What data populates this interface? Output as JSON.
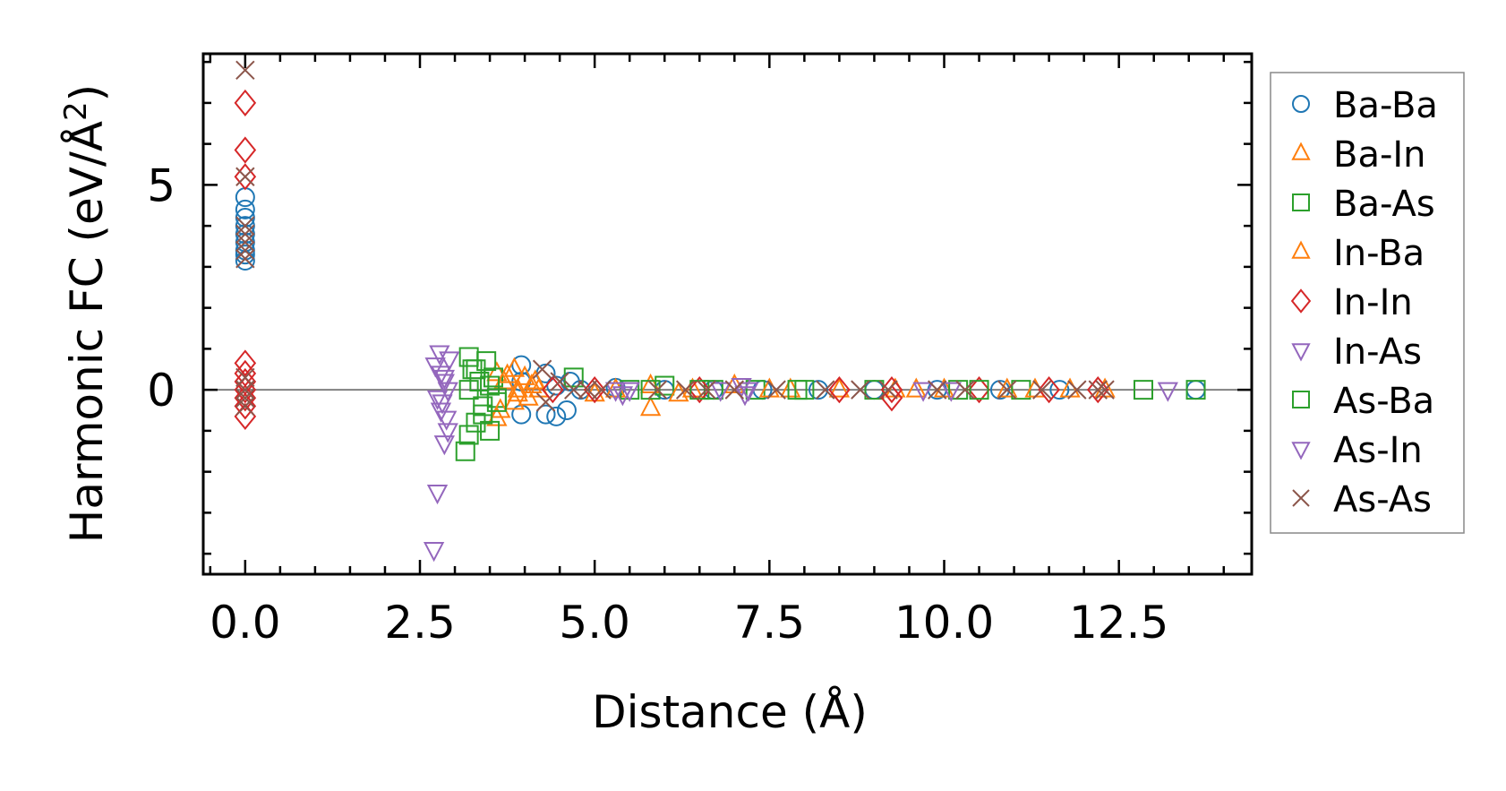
{
  "chart_data": {
    "type": "scatter",
    "title": "",
    "xlabel": "Distance (Å)",
    "ylabel_main": "Harmonic FC (eV/Å",
    "ylabel_sup": "2",
    "ylabel_end": ")",
    "xlim": [
      -0.6,
      14.4
    ],
    "ylim": [
      -4.5,
      8.2
    ],
    "x_ticks": [
      0.0,
      2.5,
      5.0,
      7.5,
      10.0,
      12.5
    ],
    "x_tick_labels": [
      "0.0",
      "2.5",
      "5.0",
      "7.5",
      "10.0",
      "12.5"
    ],
    "y_ticks": [
      0,
      5
    ],
    "y_tick_labels": [
      "0",
      "5"
    ],
    "x_minor_step": 0.5,
    "y_minor_step": 1.0,
    "zero_line": true,
    "legend_position": "outside-right",
    "series": [
      {
        "name": "Ba-Ba",
        "marker": "circle",
        "color": "#1f77b4",
        "points": [
          [
            0,
            4.7
          ],
          [
            0,
            4.4
          ],
          [
            0,
            4.2
          ],
          [
            0,
            4.0
          ],
          [
            0,
            3.8
          ],
          [
            0,
            3.6
          ],
          [
            0,
            3.4
          ],
          [
            0,
            3.3
          ],
          [
            0,
            3.15
          ],
          [
            3.95,
            0.6
          ],
          [
            3.95,
            0.2
          ],
          [
            3.95,
            -0.6
          ],
          [
            4.3,
            0.4
          ],
          [
            4.3,
            -0.6
          ],
          [
            4.45,
            0.1
          ],
          [
            4.45,
            -0.65
          ],
          [
            4.6,
            -0.5
          ],
          [
            4.65,
            0.2
          ],
          [
            4.8,
            0.0
          ],
          [
            5.3,
            0.05
          ],
          [
            6.0,
            0.0
          ],
          [
            6.7,
            0.0
          ],
          [
            7.4,
            0.0
          ],
          [
            8.2,
            0.0
          ],
          [
            9.0,
            0.0
          ],
          [
            9.9,
            0.0
          ],
          [
            10.8,
            0.0
          ],
          [
            11.65,
            0.0
          ],
          [
            13.6,
            0.0
          ]
        ]
      },
      {
        "name": "Ba-In",
        "marker": "triangle-up",
        "color": "#ff7f0e",
        "points": [
          [
            3.6,
            0.4
          ],
          [
            3.6,
            -0.7
          ],
          [
            3.7,
            0.2
          ],
          [
            3.85,
            0.5
          ],
          [
            3.85,
            -0.3
          ],
          [
            3.9,
            0.0
          ],
          [
            4.0,
            0.3
          ],
          [
            4.05,
            -0.2
          ],
          [
            4.1,
            0.1
          ],
          [
            4.2,
            0.0
          ],
          [
            5.3,
            0.0
          ],
          [
            5.8,
            -0.45
          ],
          [
            5.8,
            0.1
          ],
          [
            6.4,
            0.0
          ],
          [
            7.0,
            0.1
          ],
          [
            7.8,
            0.0
          ],
          [
            8.5,
            0.0
          ],
          [
            9.3,
            0.0
          ],
          [
            10.0,
            0.0
          ],
          [
            10.9,
            0.0
          ],
          [
            11.8,
            0.0
          ],
          [
            12.3,
            0.0
          ]
        ]
      },
      {
        "name": "Ba-As",
        "marker": "square",
        "color": "#2ca02c",
        "points": [
          [
            3.15,
            -1.5
          ],
          [
            3.2,
            0.8
          ],
          [
            3.2,
            -1.1
          ],
          [
            3.25,
            0.5
          ],
          [
            3.3,
            -0.8
          ],
          [
            3.35,
            0.2
          ],
          [
            3.4,
            -0.4
          ],
          [
            3.45,
            0.7
          ],
          [
            3.5,
            -1.0
          ],
          [
            3.55,
            0.3
          ],
          [
            3.6,
            -0.2
          ],
          [
            4.7,
            0.3
          ],
          [
            5.5,
            0.0
          ],
          [
            6.0,
            0.1
          ],
          [
            6.7,
            0.0
          ],
          [
            7.3,
            0.0
          ],
          [
            8.0,
            0.0
          ],
          [
            9.0,
            0.0
          ],
          [
            10.2,
            0.0
          ],
          [
            11.1,
            0.0
          ],
          [
            12.85,
            0.0
          ],
          [
            13.6,
            0.0
          ]
        ]
      },
      {
        "name": "In-Ba",
        "marker": "triangle-up",
        "color": "#ff7f0e",
        "points": [
          [
            3.65,
            -0.5
          ],
          [
            3.75,
            0.35
          ],
          [
            3.9,
            -0.1
          ],
          [
            4.15,
            0.2
          ],
          [
            5.0,
            -0.1
          ],
          [
            6.2,
            -0.1
          ],
          [
            7.5,
            0.0
          ],
          [
            9.6,
            0.0
          ],
          [
            11.3,
            0.0
          ]
        ]
      },
      {
        "name": "In-In",
        "marker": "diamond",
        "color": "#d62728",
        "points": [
          [
            0,
            7.0
          ],
          [
            0,
            5.85
          ],
          [
            0,
            5.2
          ],
          [
            0,
            0.65
          ],
          [
            0,
            0.4
          ],
          [
            0,
            0.2
          ],
          [
            0,
            0.0
          ],
          [
            0,
            -0.2
          ],
          [
            0,
            -0.4
          ],
          [
            0,
            -0.65
          ],
          [
            4.4,
            0.0
          ],
          [
            5.0,
            0.0
          ],
          [
            6.5,
            0.0
          ],
          [
            8.5,
            0.0
          ],
          [
            9.25,
            0.0
          ],
          [
            9.25,
            -0.2
          ],
          [
            10.5,
            0.0
          ],
          [
            11.5,
            0.0
          ],
          [
            12.2,
            0.0
          ]
        ]
      },
      {
        "name": "In-As",
        "marker": "triangle-down",
        "color": "#9467bd",
        "points": [
          [
            2.7,
            -3.9
          ],
          [
            2.72,
            0.6
          ],
          [
            2.75,
            -2.5
          ],
          [
            2.78,
            0.9
          ],
          [
            2.8,
            0.4
          ],
          [
            2.82,
            -0.3
          ],
          [
            2.85,
            -1.3
          ],
          [
            2.85,
            0.2
          ],
          [
            2.88,
            -0.7
          ],
          [
            2.9,
            -1.0
          ],
          [
            2.92,
            0.75
          ],
          [
            5.3,
            0.0
          ],
          [
            5.4,
            -0.1
          ],
          [
            6.8,
            0.0
          ],
          [
            7.1,
            0.1
          ],
          [
            7.2,
            0.0
          ],
          [
            9.7,
            0.0
          ],
          [
            13.2,
            0.0
          ]
        ]
      },
      {
        "name": "As-Ba",
        "marker": "square",
        "color": "#2ca02c",
        "points": [
          [
            3.2,
            0.0
          ],
          [
            3.3,
            0.5
          ],
          [
            3.4,
            -0.6
          ],
          [
            3.5,
            0.1
          ],
          [
            3.6,
            -0.3
          ],
          [
            5.8,
            0.0
          ],
          [
            6.5,
            0.0
          ],
          [
            7.9,
            0.0
          ],
          [
            10.5,
            0.0
          ]
        ]
      },
      {
        "name": "As-In",
        "marker": "triangle-down",
        "color": "#9467bd",
        "points": [
          [
            2.75,
            -0.2
          ],
          [
            2.8,
            -0.5
          ],
          [
            2.85,
            0.3
          ],
          [
            2.9,
            0.0
          ],
          [
            5.5,
            0.0
          ],
          [
            7.15,
            -0.1
          ],
          [
            10.1,
            0.0
          ]
        ]
      },
      {
        "name": "As-As",
        "marker": "x",
        "color": "#8c564b",
        "points": [
          [
            0,
            7.8
          ],
          [
            0,
            5.2
          ],
          [
            0,
            4.0
          ],
          [
            0,
            3.8
          ],
          [
            0,
            3.6
          ],
          [
            0,
            3.4
          ],
          [
            0,
            3.2
          ],
          [
            0,
            0.3
          ],
          [
            0,
            0.0
          ],
          [
            0,
            -0.2
          ],
          [
            0,
            -0.4
          ],
          [
            4.25,
            0.5
          ],
          [
            4.3,
            -0.3
          ],
          [
            4.5,
            0.2
          ],
          [
            4.7,
            0.0
          ],
          [
            4.9,
            0.0
          ],
          [
            5.1,
            0.0
          ],
          [
            5.9,
            0.0
          ],
          [
            6.3,
            0.0
          ],
          [
            6.6,
            0.0
          ],
          [
            7.0,
            0.0
          ],
          [
            7.6,
            0.0
          ],
          [
            8.3,
            0.0
          ],
          [
            8.8,
            0.0
          ],
          [
            9.2,
            0.0
          ],
          [
            9.9,
            0.0
          ],
          [
            10.3,
            0.0
          ],
          [
            10.9,
            0.0
          ],
          [
            11.4,
            0.0
          ],
          [
            11.9,
            0.0
          ],
          [
            12.2,
            0.0
          ],
          [
            12.3,
            0.0
          ]
        ]
      }
    ]
  }
}
